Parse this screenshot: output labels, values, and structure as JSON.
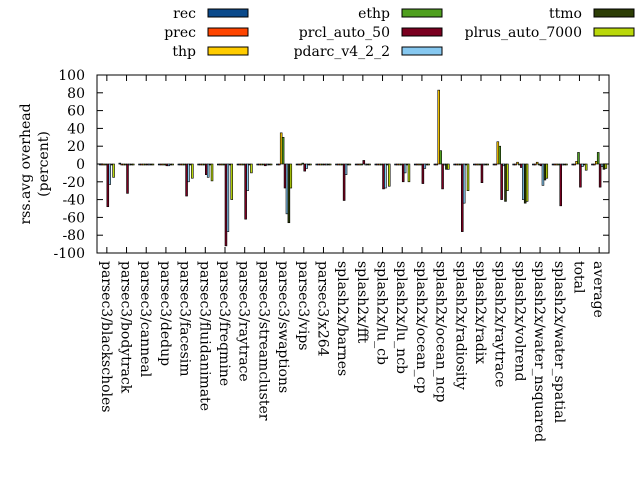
{
  "chart_data": {
    "type": "bar",
    "title": "",
    "xlabel": "",
    "ylabel": "rss.avg overhead\n(percent)",
    "ylim": [
      -100,
      100
    ],
    "yticks": [
      100,
      80,
      60,
      40,
      20,
      0,
      -20,
      -40,
      -60,
      -80,
      -100
    ],
    "grid": false,
    "legend_position": "top",
    "categories": [
      "parsec3/blackscholes",
      "parsec3/bodytrack",
      "parsec3/canneal",
      "parsec3/dedup",
      "parsec3/facesim",
      "parsec3/fluidanimate",
      "parsec3/freqmine",
      "parsec3/raytrace",
      "parsec3/streamcluster",
      "parsec3/swaptions",
      "parsec3/vips",
      "parsec3/x264",
      "splash2x/barnes",
      "splash2x/fft",
      "splash2x/lu_cb",
      "splash2x/lu_ncb",
      "splash2x/ocean_cp",
      "splash2x/ocean_ncp",
      "splash2x/radiosity",
      "splash2x/radix",
      "splash2x/raytrace",
      "splash2x/volrend",
      "splash2x/water_nsquared",
      "splash2x/water_spatial",
      "total",
      "average"
    ],
    "series": [
      {
        "name": "rec",
        "color": "#0b4a8b",
        "values": [
          -1,
          1,
          -1,
          -1,
          -1,
          -1,
          -1,
          -1,
          -1,
          -1,
          -1,
          -1,
          -1,
          -1,
          -1,
          -1,
          -1,
          -1,
          -1,
          -1,
          -1,
          -1,
          -1,
          -1,
          -1,
          -1
        ]
      },
      {
        "name": "prec",
        "color": "#ff4500",
        "values": [
          0,
          0,
          -1,
          0,
          0,
          0,
          0,
          0,
          0,
          0,
          0,
          0,
          0,
          0,
          0,
          0,
          0,
          0,
          0,
          0,
          0,
          0,
          0,
          0,
          0,
          0
        ]
      },
      {
        "name": "thp",
        "color": "#ffcc00",
        "values": [
          -1,
          -1,
          -1,
          -1,
          -1,
          -1,
          -1,
          -1,
          -1,
          35,
          -1,
          -1,
          0,
          0,
          0,
          0,
          0,
          83,
          0,
          0,
          25,
          2,
          2,
          0,
          3,
          3
        ]
      },
      {
        "name": "ethp",
        "color": "#4f9f1f",
        "values": [
          -1,
          -1,
          -1,
          -1,
          -1,
          -1,
          -1,
          -1,
          -1,
          30,
          1,
          -1,
          0,
          0,
          -1,
          0,
          0,
          15,
          0,
          0,
          20,
          0,
          0,
          0,
          13,
          13
        ]
      },
      {
        "name": "prcl_auto_50",
        "color": "#7a0020",
        "values": [
          -48,
          -33,
          -1,
          -2,
          -36,
          -12,
          -92,
          -62,
          -2,
          -27,
          -8,
          -1,
          -41,
          4,
          -28,
          -20,
          -22,
          -28,
          -76,
          -21,
          -40,
          -4,
          -2,
          -47,
          -26,
          -26
        ]
      },
      {
        "name": "pdarc_v4_2_2",
        "color": "#86c8f0",
        "values": [
          -23,
          -1,
          -1,
          -2,
          -20,
          -15,
          -76,
          -30,
          -1,
          -56,
          -5,
          -1,
          -12,
          -1,
          -27,
          -10,
          -5,
          -1,
          -44,
          -1,
          -2,
          -40,
          -24,
          -1,
          -3,
          -3
        ]
      },
      {
        "name": "ttmo",
        "color": "#2c3d05",
        "values": [
          -1,
          -1,
          -1,
          -1,
          -1,
          -1,
          -1,
          -1,
          -1,
          -66,
          -1,
          -1,
          -1,
          -1,
          -1,
          -1,
          -1,
          -6,
          -1,
          -1,
          -42,
          -44,
          -18,
          -1,
          -1,
          -6
        ]
      },
      {
        "name": "plrus_auto_7000",
        "color": "#bad80a",
        "values": [
          -15,
          -1,
          -1,
          -1,
          -16,
          -19,
          -40,
          -10,
          -1,
          -27,
          -1,
          -1,
          -1,
          -1,
          -25,
          -20,
          -1,
          -6,
          -30,
          -1,
          -30,
          -42,
          -16,
          -1,
          -7,
          -5
        ]
      }
    ]
  }
}
